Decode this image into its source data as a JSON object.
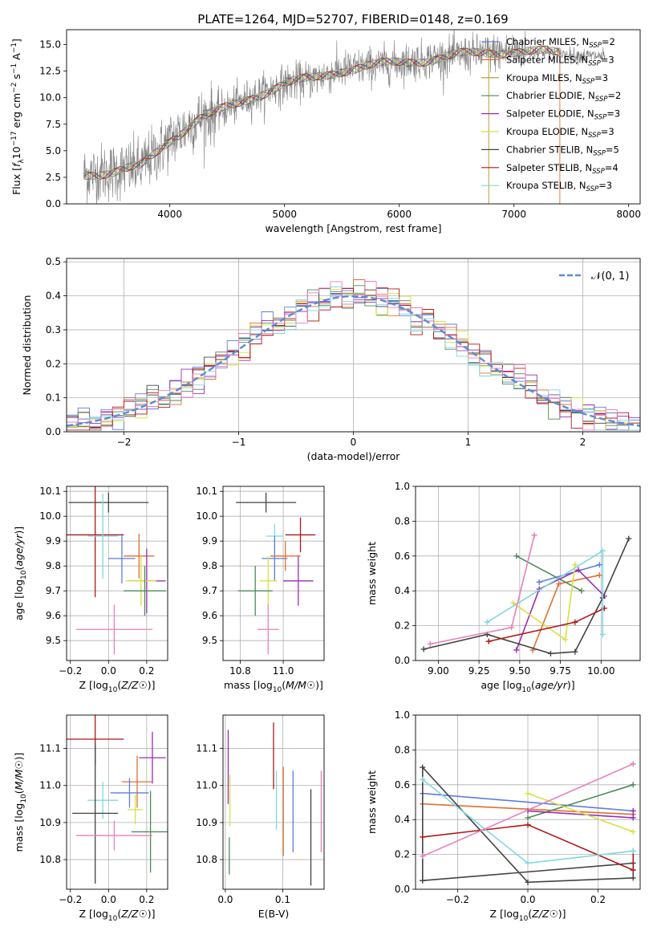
{
  "figure_title": "PLATE=1264, MJD=52707, FIBERID=0148, z=0.169",
  "chart_data": [
    {
      "id": "spectrum",
      "type": "line",
      "title": "PLATE=1264, MJD=52707, FIBERID=0148, z=0.169",
      "xlabel": "wavelength [Angstrom, rest frame]",
      "ylabel": "Flux [f_λ 10^-17 erg cm^-2 s^-1 A^-1]",
      "xlim": [
        3100,
        8100
      ],
      "ylim": [
        0,
        16.4
      ],
      "xticks": [
        4000,
        5000,
        6000,
        7000,
        8000
      ],
      "yticks": [
        0,
        2.5,
        5.0,
        7.5,
        10.0,
        12.5,
        15.0
      ],
      "ytick_labels": [
        "0.0",
        "2.5",
        "5.0",
        "7.5",
        "10.0",
        "12.5",
        "15.0"
      ],
      "grid": false,
      "legend_position": "right",
      "data_envelope": {
        "x": [
          3250,
          3500,
          3750,
          4000,
          4250,
          4500,
          4750,
          5000,
          5250,
          5500,
          5750,
          6000,
          6250,
          6500,
          6750,
          7000,
          7250,
          7500,
          7800
        ],
        "y": [
          2.8,
          3.0,
          3.5,
          6.0,
          8.0,
          9.0,
          10.2,
          11.3,
          11.8,
          12.6,
          13.0,
          13.3,
          13.6,
          14.0,
          14.2,
          14.4,
          14.3,
          14.0,
          13.9
        ]
      },
      "series": [
        {
          "name": "Chabrier MILES, N_SSP=2",
          "color": "#5e7de0"
        },
        {
          "name": "Salpeter MILES, N_SSP=3",
          "color": "#e07030"
        },
        {
          "name": "Kroupa MILES, N_SSP=3",
          "color": "#b8902a"
        },
        {
          "name": "Chabrier ELODIE, N_SSP=2",
          "color": "#4f8a5a"
        },
        {
          "name": "Salpeter ELODIE, N_SSP=3",
          "color": "#9a2db0"
        },
        {
          "name": "Kroupa ELODIE, N_SSP=3",
          "color": "#d8e040"
        },
        {
          "name": "Chabrier STELIB, N_SSP=5",
          "color": "#444444"
        },
        {
          "name": "Salpeter STELIB, N_SSP=4",
          "color": "#b01818"
        },
        {
          "name": "Kroupa STELIB, N_SSP=3",
          "color": "#7fd8e0"
        }
      ]
    },
    {
      "id": "residuals",
      "type": "line",
      "xlabel": "(data-model)/error",
      "ylabel": "Normed distribution",
      "xlim": [
        -2.5,
        2.5
      ],
      "ylim": [
        0,
        0.51
      ],
      "xticks": [
        -2,
        -1,
        0,
        1,
        2
      ],
      "xtick_labels": [
        "−2",
        "−1",
        "0",
        "1",
        "2"
      ],
      "yticks": [
        0,
        0.1,
        0.2,
        0.3,
        0.4,
        0.5
      ],
      "ytick_labels": [
        "0.0",
        "0.1",
        "0.2",
        "0.3",
        "0.4",
        "0.5"
      ],
      "grid": true,
      "legend": [
        {
          "name": "𝒩(0, 1)",
          "color": "#5b8bd6",
          "style": "dashed"
        }
      ],
      "legend_position": "top-right",
      "reference_curve": "gaussian, mean 0, sigma 1",
      "histogram_colors": [
        "#5e7de0",
        "#e07030",
        "#4f8a5a",
        "#9a2db0",
        "#d8e040",
        "#444444",
        "#b01818",
        "#7fd8e0",
        "#e87fbf"
      ]
    },
    {
      "id": "age-vs-Z",
      "type": "scatter",
      "xlabel": "Z [log10(Z/Z☉)]",
      "ylabel": "age [log10(age/yr)]",
      "xlim": [
        -0.22,
        0.31
      ],
      "ylim": [
        9.42,
        10.12
      ],
      "xticks": [
        -0.2,
        0.0,
        0.2
      ],
      "xtick_labels": [
        "−0.2",
        "0.0",
        "0.2"
      ],
      "yticks": [
        9.5,
        9.6,
        9.7,
        9.8,
        9.9,
        10.0,
        10.1
      ],
      "ytick_labels": [
        "9.5",
        "9.6",
        "9.7",
        "9.8",
        "9.9",
        "10.0",
        "10.1"
      ],
      "grid": true,
      "points": [
        {
          "x": 0.0,
          "y": 10.055,
          "xerr": 0.21,
          "yerr": 0.04,
          "color": "#444444"
        },
        {
          "x": -0.07,
          "y": 9.925,
          "xerr": 0.15,
          "yerr": 0.25,
          "color": "#b01818"
        },
        {
          "x": -0.03,
          "y": 9.92,
          "xerr": 0.08,
          "yerr": 0.17,
          "color": "#7fd8e0"
        },
        {
          "x": 0.07,
          "y": 9.83,
          "xerr": 0.07,
          "yerr": 0.1,
          "color": "#5e7de0"
        },
        {
          "x": 0.16,
          "y": 9.84,
          "xerr": 0.08,
          "yerr": 0.09,
          "color": "#e07030"
        },
        {
          "x": 0.2,
          "y": 9.74,
          "xerr": 0.1,
          "yerr": 0.13,
          "color": "#9a2db0"
        },
        {
          "x": 0.17,
          "y": 9.74,
          "xerr": 0.08,
          "yerr": 0.1,
          "color": "#d8e040"
        },
        {
          "x": 0.19,
          "y": 9.7,
          "xerr": 0.11,
          "yerr": 0.1,
          "color": "#4f8a5a"
        },
        {
          "x": 0.03,
          "y": 9.545,
          "xerr": 0.2,
          "yerr": 0.1,
          "color": "#e87fbf"
        }
      ]
    },
    {
      "id": "age-vs-mass",
      "type": "scatter",
      "xlabel": "mass [log10(M/M☉)]",
      "ylabel": "",
      "xlim": [
        10.72,
        11.19
      ],
      "ylim": [
        9.42,
        10.12
      ],
      "xticks": [
        10.8,
        11.0
      ],
      "xtick_labels": [
        "10.8",
        "11.0"
      ],
      "yticks": [
        9.5,
        9.6,
        9.7,
        9.8,
        9.9,
        10.0,
        10.1
      ],
      "ytick_labels": [
        "9.5",
        "9.6",
        "9.7",
        "9.8",
        "9.9",
        "10.0",
        "10.1"
      ],
      "grid": true,
      "points": [
        {
          "x": 10.92,
          "y": 10.055,
          "xerr": 0.14,
          "yerr": 0.04,
          "color": "#444444"
        },
        {
          "x": 11.08,
          "y": 9.925,
          "xerr": 0.07,
          "yerr": 0.07,
          "color": "#b01818"
        },
        {
          "x": 10.96,
          "y": 9.92,
          "xerr": 0.04,
          "yerr": 0.05,
          "color": "#7fd8e0"
        },
        {
          "x": 10.96,
          "y": 9.83,
          "xerr": 0.06,
          "yerr": 0.09,
          "color": "#5e7de0"
        },
        {
          "x": 11.01,
          "y": 9.84,
          "xerr": 0.07,
          "yerr": 0.06,
          "color": "#e07030"
        },
        {
          "x": 11.07,
          "y": 9.74,
          "xerr": 0.07,
          "yerr": 0.1,
          "color": "#9a2db0"
        },
        {
          "x": 10.93,
          "y": 9.74,
          "xerr": 0.04,
          "yerr": 0.1,
          "color": "#d8e040"
        },
        {
          "x": 10.87,
          "y": 9.7,
          "xerr": 0.08,
          "yerr": 0.1,
          "color": "#4f8a5a"
        },
        {
          "x": 10.93,
          "y": 9.545,
          "xerr": 0.05,
          "yerr": 0.1,
          "color": "#e87fbf"
        }
      ]
    },
    {
      "id": "mass-weight-vs-age",
      "type": "line",
      "xlabel": "age [log10(age/yr)]",
      "ylabel": "mass weight",
      "xlim": [
        8.86,
        10.24
      ],
      "ylim": [
        0,
        1.0
      ],
      "xticks": [
        9.0,
        9.25,
        9.5,
        9.75,
        10.0
      ],
      "xtick_labels": [
        "9.00",
        "9.25",
        "9.50",
        "9.75",
        "10.00"
      ],
      "yticks": [
        0,
        0.2,
        0.4,
        0.6,
        0.8,
        1.0
      ],
      "ytick_labels": [
        "0.0",
        "0.2",
        "0.4",
        "0.6",
        "0.8",
        "1.0"
      ],
      "grid": true,
      "series": [
        {
          "color": "#5e7de0",
          "x": [
            9.62,
            9.99
          ],
          "y": [
            0.45,
            0.55
          ]
        },
        {
          "color": "#e07030",
          "x": [
            9.58,
            9.74,
            9.99
          ],
          "y": [
            0.06,
            0.44,
            0.49
          ]
        },
        {
          "color": "#4f8a5a",
          "x": [
            9.48,
            9.88
          ],
          "y": [
            0.6,
            0.4
          ]
        },
        {
          "color": "#9a2db0",
          "x": [
            9.48,
            9.62,
            9.86,
            10.02
          ],
          "y": [
            0.06,
            0.41,
            0.52,
            0.37
          ]
        },
        {
          "color": "#d8e040",
          "x": [
            9.46,
            9.78,
            9.84
          ],
          "y": [
            0.33,
            0.12,
            0.55
          ]
        },
        {
          "color": "#444444",
          "x": [
            8.91,
            9.3,
            9.69,
            9.84,
            10.01,
            10.17
          ],
          "y": [
            0.065,
            0.15,
            0.04,
            0.05,
            0.36,
            0.7
          ]
        },
        {
          "color": "#b01818",
          "x": [
            9.31,
            9.84,
            10.02
          ],
          "y": [
            0.11,
            0.22,
            0.3
          ]
        },
        {
          "color": "#7fd8e0",
          "x": [
            9.3,
            10.01,
            10.01
          ],
          "y": [
            0.22,
            0.63,
            0.15
          ]
        },
        {
          "color": "#e87fbf",
          "x": [
            8.95,
            9.45,
            9.59
          ],
          "y": [
            0.095,
            0.19,
            0.72
          ]
        }
      ]
    },
    {
      "id": "mass-vs-Z",
      "type": "scatter",
      "xlabel": "Z [log10(Z/Z☉)]",
      "ylabel": "mass [log10(M/M☉)]",
      "xlim": [
        -0.22,
        0.31
      ],
      "ylim": [
        10.72,
        11.19
      ],
      "xticks": [
        -0.2,
        0.0,
        0.2
      ],
      "xtick_labels": [
        "−0.2",
        "0.0",
        "0.2"
      ],
      "yticks": [
        10.8,
        10.9,
        11.0,
        11.1
      ],
      "ytick_labels": [
        "10.8",
        "10.9",
        "11.0",
        "11.1"
      ],
      "grid": true,
      "points": [
        {
          "x": -0.07,
          "y": 11.125,
          "xerr": 0.15,
          "yerr": 0.07,
          "color": "#b01818"
        },
        {
          "x": 0.23,
          "y": 11.075,
          "xerr": 0.07,
          "yerr": 0.07,
          "color": "#9a2db0"
        },
        {
          "x": 0.15,
          "y": 11.01,
          "xerr": 0.08,
          "yerr": 0.07,
          "color": "#e07030"
        },
        {
          "x": 0.11,
          "y": 10.98,
          "xerr": 0.1,
          "yerr": 0.04,
          "color": "#5e7de0"
        },
        {
          "x": -0.03,
          "y": 10.96,
          "xerr": 0.08,
          "yerr": 0.05,
          "color": "#7fd8e0"
        },
        {
          "x": 0.14,
          "y": 10.935,
          "xerr": 0.04,
          "yerr": 0.04,
          "color": "#d8e040"
        },
        {
          "x": -0.07,
          "y": 10.925,
          "xerr": 0.12,
          "yerr": 0.19,
          "color": "#444444"
        },
        {
          "x": 0.22,
          "y": 10.875,
          "xerr": 0.1,
          "yerr": 0.11,
          "color": "#4f8a5a"
        },
        {
          "x": 0.03,
          "y": 10.865,
          "xerr": 0.2,
          "yerr": 0.04,
          "color": "#e87fbf"
        }
      ]
    },
    {
      "id": "mass-vs-ebv",
      "type": "scatter",
      "xlabel": "E(B-V)",
      "ylabel": "",
      "xlim": [
        -0.004,
        0.172
      ],
      "ylim": [
        10.72,
        11.19
      ],
      "xticks": [
        0.0,
        0.1
      ],
      "xtick_labels": [
        "0.0",
        "0.1"
      ],
      "yticks": [
        10.8,
        10.9,
        11.0,
        11.1
      ],
      "ytick_labels": [
        "10.8",
        "10.9",
        "11.0",
        "11.1"
      ],
      "grid": true,
      "points": [
        {
          "x": 0.005,
          "y": 11.05,
          "yerr": 0.1,
          "color": "#9a2db0"
        },
        {
          "x": 0.008,
          "y": 10.96,
          "yerr": 0.07,
          "color": "#d8e040"
        },
        {
          "x": 0.007,
          "y": 10.81,
          "yerr": 0.05,
          "color": "#4f8a5a"
        },
        {
          "x": 0.084,
          "y": 11.08,
          "yerr": 0.09,
          "color": "#b01818"
        },
        {
          "x": 0.089,
          "y": 10.96,
          "yerr": 0.08,
          "color": "#7fd8e0"
        },
        {
          "x": 0.101,
          "y": 10.93,
          "yerr": 0.12,
          "color": "#e07030"
        },
        {
          "x": 0.118,
          "y": 10.93,
          "yerr": 0.11,
          "color": "#5e7de0"
        },
        {
          "x": 0.149,
          "y": 10.86,
          "yerr": 0.13,
          "color": "#444444"
        },
        {
          "x": 0.167,
          "y": 10.93,
          "yerr": 0.11,
          "color": "#e87fbf"
        }
      ]
    },
    {
      "id": "mass-weight-vs-Z",
      "type": "line",
      "xlabel": "Z [log10(Z/Z☉)]",
      "ylabel": "mass weight",
      "xlim": [
        -0.32,
        0.32
      ],
      "ylim": [
        0,
        1.0
      ],
      "xticks": [
        -0.2,
        0.0,
        0.2
      ],
      "xtick_labels": [
        "−0.2",
        "0.0",
        "0.2"
      ],
      "yticks": [
        0,
        0.2,
        0.4,
        0.6,
        0.8,
        1.0
      ],
      "ytick_labels": [
        "0.0",
        "0.2",
        "0.4",
        "0.6",
        "0.8",
        "1.0"
      ],
      "grid": true,
      "series": [
        {
          "color": "#5e7de0",
          "x": [
            -0.3,
            0.3
          ],
          "y": [
            0.55,
            0.45
          ]
        },
        {
          "color": "#e07030",
          "x": [
            -0.3,
            0.3
          ],
          "y": [
            0.49,
            0.43
          ]
        },
        {
          "color": "#4f8a5a",
          "x": [
            0.0,
            0.3
          ],
          "y": [
            0.41,
            0.6
          ]
        },
        {
          "color": "#9a2db0",
          "x": [
            0.0,
            0.3,
            0.3
          ],
          "y": [
            0.45,
            0.41,
            0.45
          ]
        },
        {
          "color": "#d8e040",
          "x": [
            0.0,
            0.3
          ],
          "y": [
            0.55,
            0.33
          ]
        },
        {
          "color": "#444444",
          "x": [
            -0.3,
            -0.3,
            0.0,
            0.3,
            0.3,
            -0.3
          ],
          "y": [
            0.05,
            0.7,
            0.04,
            0.065,
            0.15,
            0.05
          ]
        },
        {
          "color": "#b01818",
          "x": [
            -0.3,
            0.0,
            0.3,
            0.3
          ],
          "y": [
            0.3,
            0.37,
            0.11,
            0.22
          ]
        },
        {
          "color": "#7fd8e0",
          "x": [
            -0.3,
            0.0,
            0.3
          ],
          "y": [
            0.63,
            0.15,
            0.22
          ]
        },
        {
          "color": "#e87fbf",
          "x": [
            -0.3,
            0.3
          ],
          "y": [
            0.19,
            0.72
          ]
        }
      ]
    }
  ]
}
